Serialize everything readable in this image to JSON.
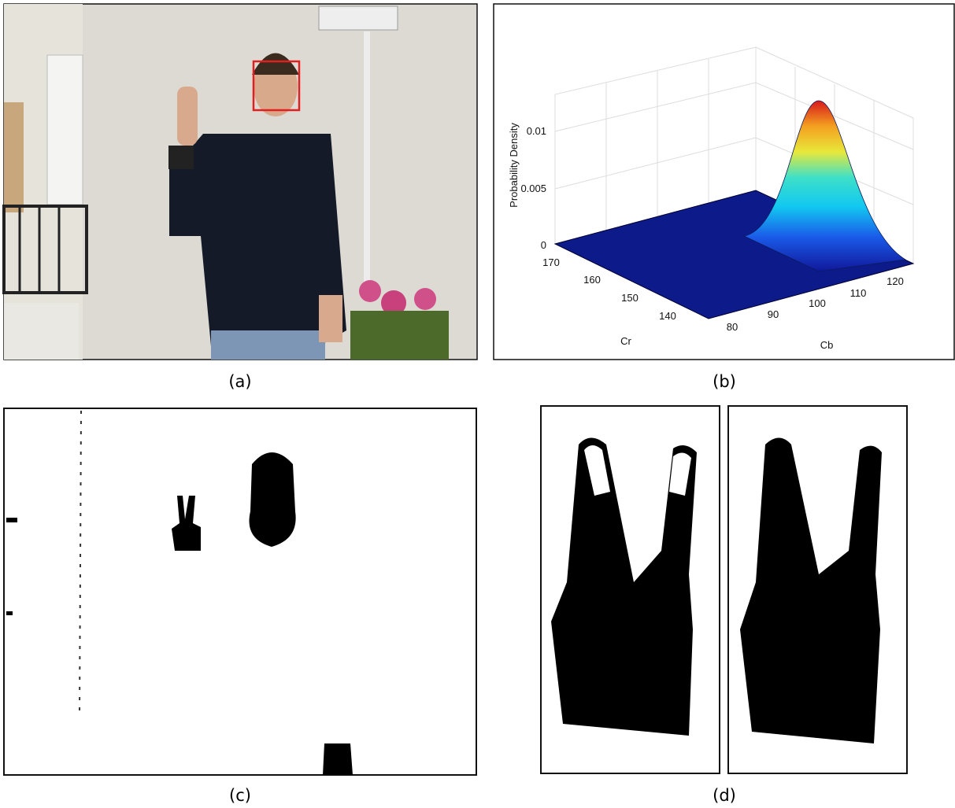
{
  "panels": [
    {
      "caption": "(a)"
    },
    {
      "caption": "(b)",
      "plot": {
        "z_label": "Probability Density",
        "z_ticks": [
          "0",
          "0.005",
          "0.01"
        ],
        "cr_label": "Cr",
        "cr_ticks": [
          "170",
          "160",
          "150",
          "140"
        ],
        "cb_label": "Cb",
        "cb_ticks": [
          "80",
          "90",
          "100",
          "110",
          "120"
        ]
      }
    },
    {
      "caption": "(c)"
    },
    {
      "caption": "(d)"
    }
  ]
}
